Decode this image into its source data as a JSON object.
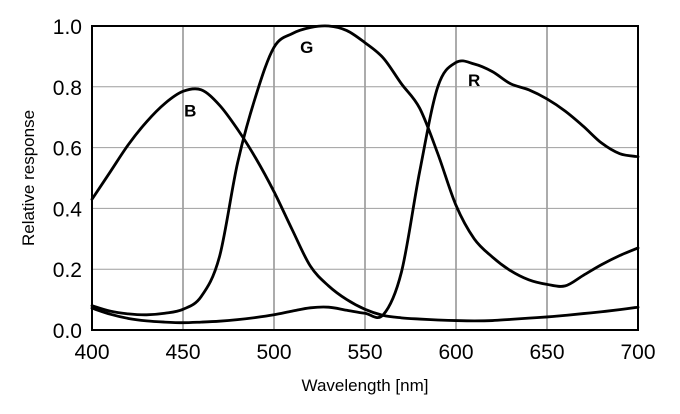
{
  "chart_data": {
    "type": "line",
    "title": "",
    "xlabel": "Wavelength [nm]",
    "ylabel": "Relative response",
    "xlim": [
      400,
      700
    ],
    "ylim": [
      0.0,
      1.0
    ],
    "grid": true,
    "legend": "inline curve labels",
    "background_color": "#ffffff",
    "axis_color": "#000000",
    "line_color": "#000000",
    "v_grid_color": "#5a5a5a",
    "h_grid_color": "#9e9e9e",
    "x_ticks": [
      400,
      450,
      500,
      550,
      600,
      650,
      700
    ],
    "x_tick_labels": [
      "400",
      "450",
      "500",
      "550",
      "600",
      "650",
      "700"
    ],
    "y_ticks": [
      0.0,
      0.2,
      0.4,
      0.6,
      0.8,
      1.0
    ],
    "y_tick_labels": [
      "0.0",
      "0.2",
      "0.4",
      "0.6",
      "0.8",
      "1.0"
    ],
    "x": [
      400,
      410,
      420,
      430,
      440,
      450,
      460,
      470,
      480,
      490,
      500,
      510,
      520,
      530,
      540,
      550,
      560,
      570,
      580,
      590,
      600,
      610,
      620,
      630,
      640,
      650,
      660,
      670,
      680,
      690,
      700
    ],
    "series": [
      {
        "name": "B",
        "label": "B",
        "label_at": {
          "x": 454,
          "y": 0.725
        },
        "values": [
          0.43,
          0.52,
          0.61,
          0.685,
          0.745,
          0.785,
          0.79,
          0.74,
          0.66,
          0.565,
          0.455,
          0.33,
          0.21,
          0.145,
          0.1,
          0.068,
          0.048,
          0.04,
          0.036,
          0.033,
          0.031,
          0.03,
          0.031,
          0.035,
          0.039,
          0.043,
          0.048,
          0.054,
          0.06,
          0.067,
          0.075
        ]
      },
      {
        "name": "G",
        "label": "G",
        "label_at": {
          "x": 518,
          "y": 0.935
        },
        "values": [
          0.08,
          0.062,
          0.053,
          0.05,
          0.055,
          0.068,
          0.11,
          0.24,
          0.55,
          0.77,
          0.93,
          0.975,
          0.995,
          1.0,
          0.985,
          0.945,
          0.895,
          0.81,
          0.73,
          0.58,
          0.41,
          0.3,
          0.24,
          0.195,
          0.165,
          0.15,
          0.145,
          0.18,
          0.215,
          0.245,
          0.27
        ]
      },
      {
        "name": "R",
        "label": "R",
        "label_at": {
          "x": 610,
          "y": 0.825
        },
        "values": [
          0.072,
          0.052,
          0.038,
          0.03,
          0.026,
          0.024,
          0.026,
          0.029,
          0.034,
          0.041,
          0.05,
          0.062,
          0.073,
          0.075,
          0.065,
          0.055,
          0.05,
          0.19,
          0.52,
          0.8,
          0.88,
          0.875,
          0.85,
          0.81,
          0.79,
          0.76,
          0.72,
          0.67,
          0.615,
          0.58,
          0.57
        ]
      }
    ]
  }
}
